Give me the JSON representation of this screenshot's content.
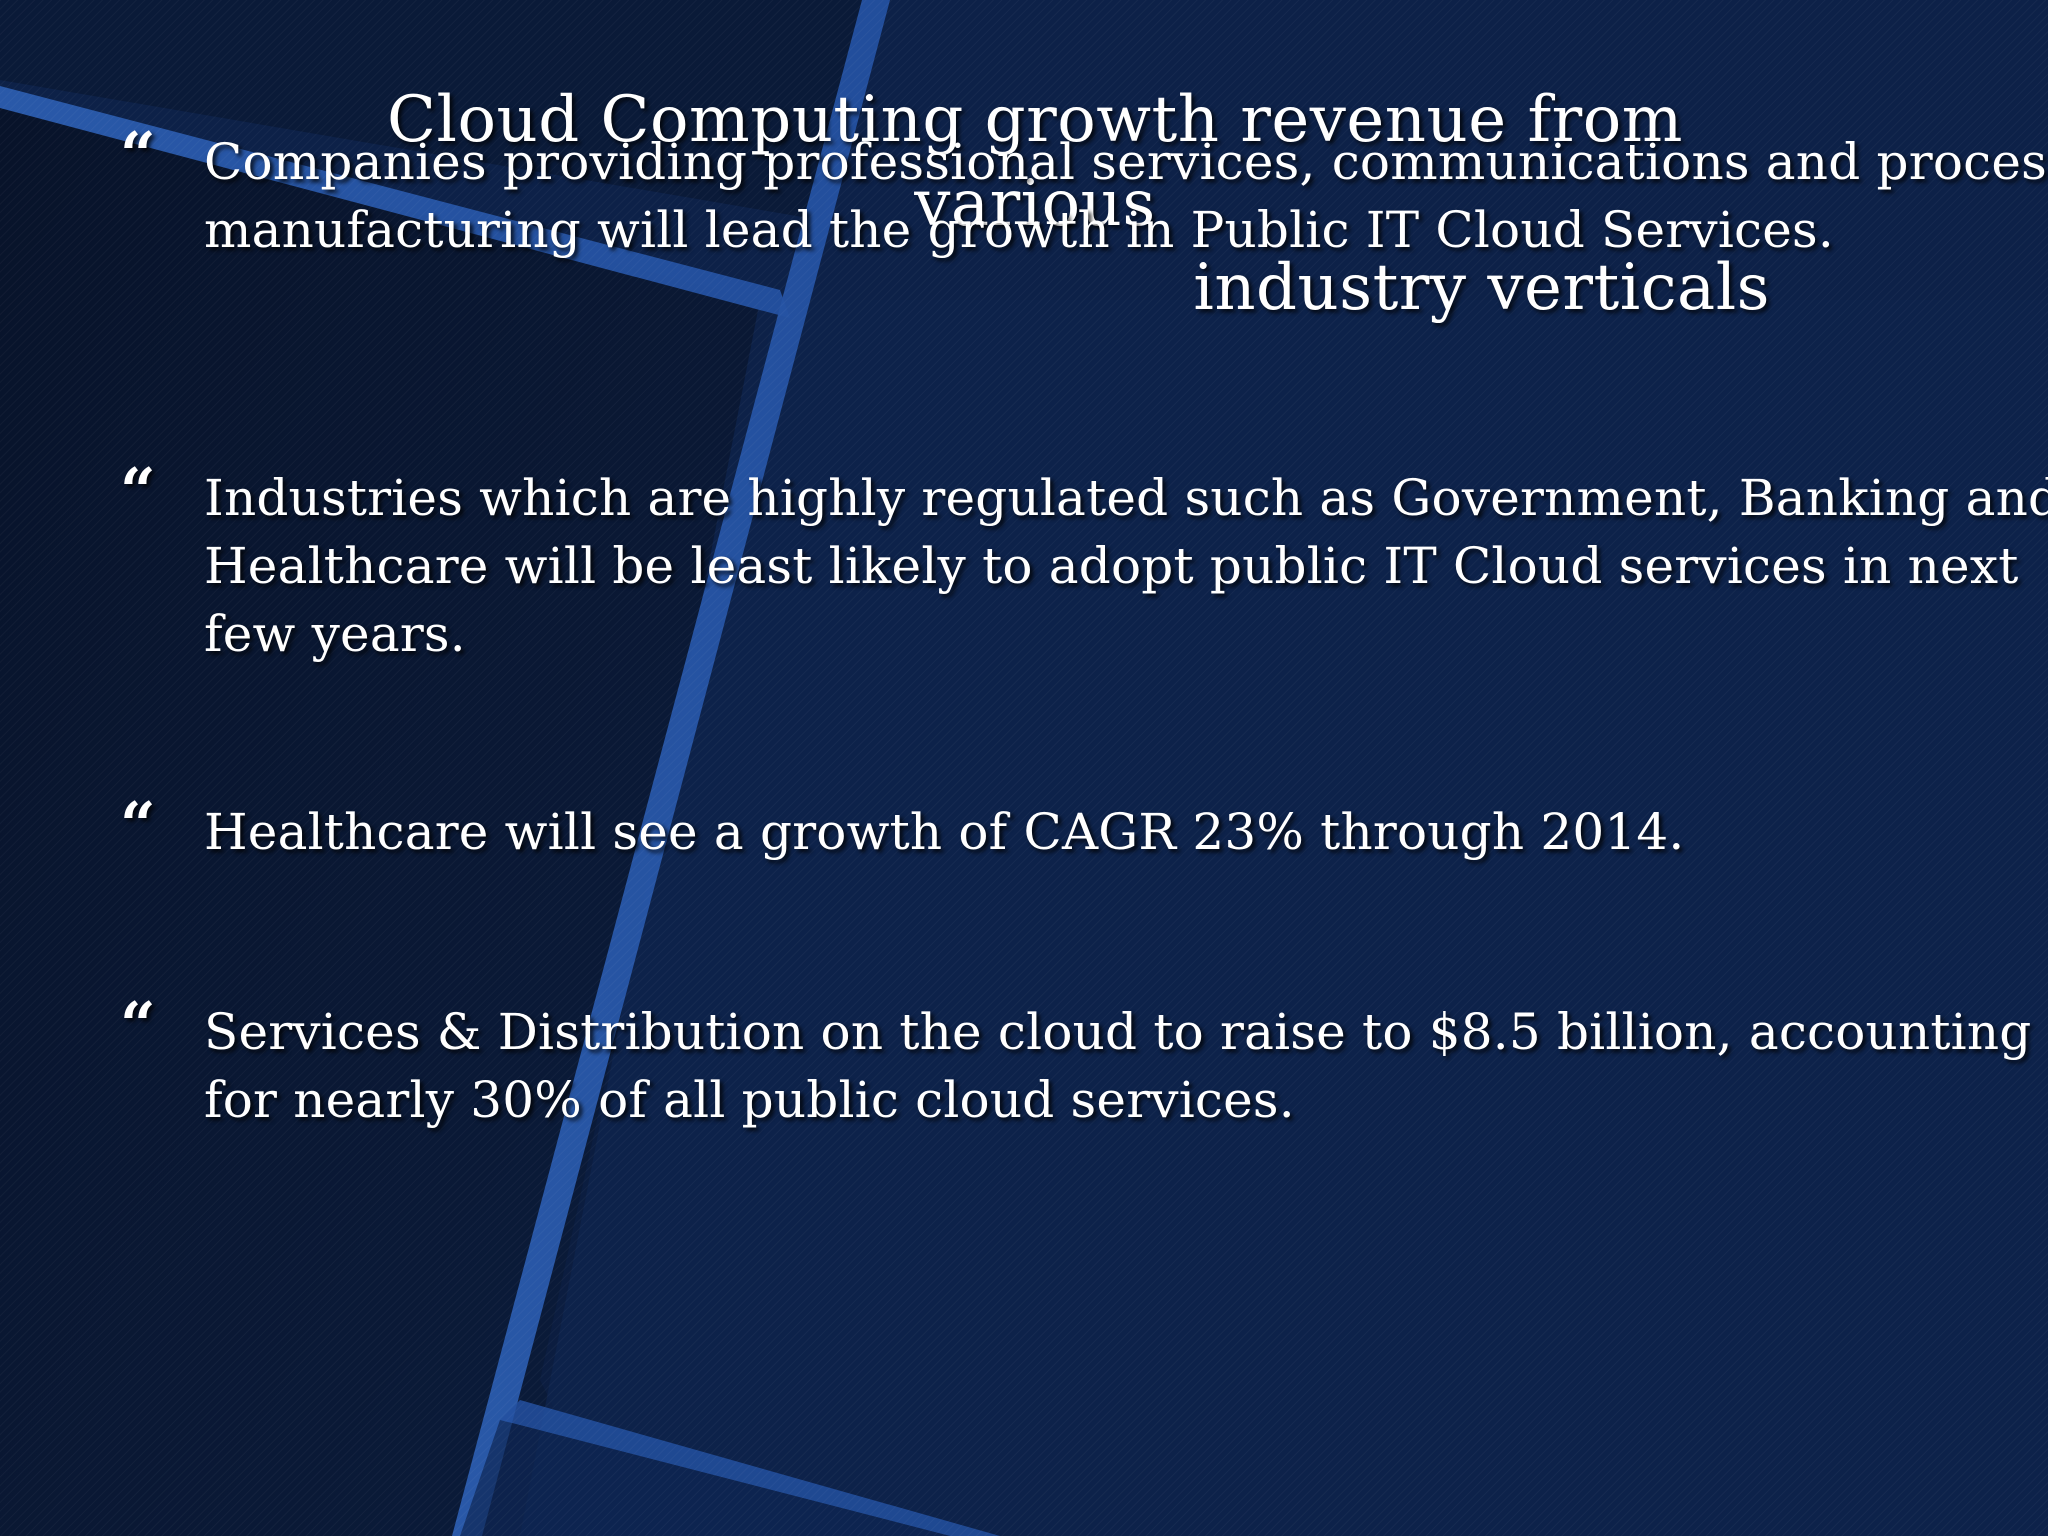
{
  "slide": {
    "title": "Cloud Computing growth revenue from various industry verticals",
    "title_line1": "Cloud Computing growth revenue from various",
    "title_line2": "industry verticals",
    "bullet_mark": "“",
    "bullets": [
      {
        "text": "Companies providing professional services, communications and process manufacturing will lead the growth in Public IT Cloud Services."
      },
      {
        "text": "Industries which are highly regulated such as Government, Banking and Healthcare will be least likely to adopt public IT Cloud services in next few years."
      },
      {
        "text": "Healthcare will see a growth of CAGR 23% through 2014."
      },
      {
        "text": "Services & Distribution on the cloud to raise to $8.5 billion, accounting for nearly 30% of all public cloud services."
      }
    ]
  },
  "colors": {
    "background_dark": "#0a1730",
    "background_mid": "#0d2146",
    "accent_band": "#2a5aa8",
    "text": "#ffffff"
  }
}
